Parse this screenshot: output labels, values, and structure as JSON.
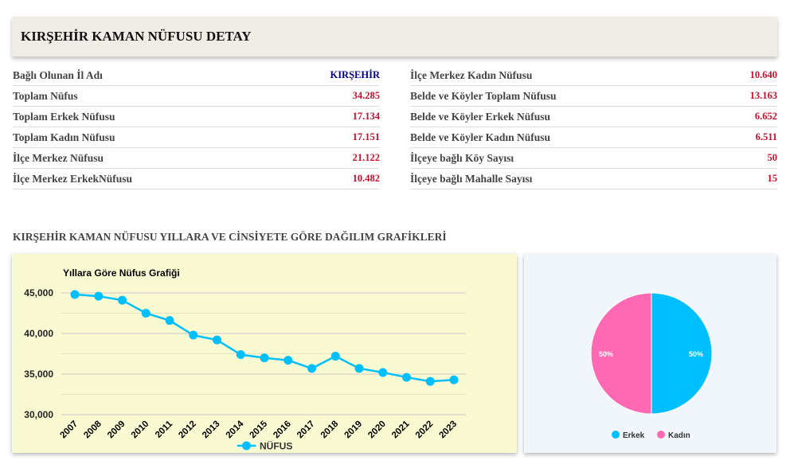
{
  "header": {
    "title": "KIRŞEHİR KAMAN NÜFUSU DETAY"
  },
  "left_table": [
    {
      "label": "Bağlı Olunan İl Adı",
      "value": "KIRŞEHİR"
    },
    {
      "label": "Toplam Nüfus",
      "value": "34.285"
    },
    {
      "label": "Toplam Erkek Nüfusu",
      "value": "17.134"
    },
    {
      "label": "Toplam Kadın Nüfusu",
      "value": "17.151"
    },
    {
      "label": "İlçe Merkez Nüfusu",
      "value": "21.122"
    },
    {
      "label": "İlçe Merkez ErkekNüfusu",
      "value": "10.482"
    }
  ],
  "right_table": [
    {
      "label": "İlçe Merkez Kadın Nüfusu",
      "value": "10.640"
    },
    {
      "label": "Belde ve Köyler Toplam Nüfusu",
      "value": "13.163"
    },
    {
      "label": "Belde ve Köyler Erkek Nüfusu",
      "value": "6.652"
    },
    {
      "label": "Belde ve Köyler Kadın Nüfusu",
      "value": "6.511"
    },
    {
      "label": "İlçeye bağlı Köy Sayısı",
      "value": "50"
    },
    {
      "label": "İlçeye bağlı Mahalle Sayısı",
      "value": "15"
    }
  ],
  "section_title": "KIRŞEHİR KAMAN NÜFUSU YILLARA VE CİNSİYETE GÖRE DAĞILIM GRAFİKLERİ",
  "chart_data": [
    {
      "type": "line",
      "title": "Yıllara Göre Nüfus Grafiği",
      "x": [
        "2007",
        "2008",
        "2009",
        "2010",
        "2011",
        "2012",
        "2013",
        "2014",
        "2015",
        "2016",
        "2017",
        "2018",
        "2019",
        "2020",
        "2021",
        "2022",
        "2023"
      ],
      "series": [
        {
          "name": "NÜFUS",
          "color": "#00bfff",
          "values": [
            44800,
            44600,
            44100,
            42500,
            41600,
            39800,
            39200,
            37400,
            37000,
            36700,
            35700,
            37200,
            35700,
            35200,
            34600,
            34100,
            34285
          ]
        }
      ],
      "ylim": [
        30000,
        45000
      ],
      "yticks": [
        "30,000",
        "35,000",
        "40,000",
        "45,000"
      ],
      "grid": true,
      "legend": "bottom"
    },
    {
      "type": "pie",
      "categories": [
        "Erkek",
        "Kadın"
      ],
      "values": [
        50,
        50
      ],
      "labels": [
        "50%",
        "50%"
      ],
      "colors": [
        "#00bfff",
        "#ff69b4"
      ],
      "legend": "bottom"
    }
  ]
}
